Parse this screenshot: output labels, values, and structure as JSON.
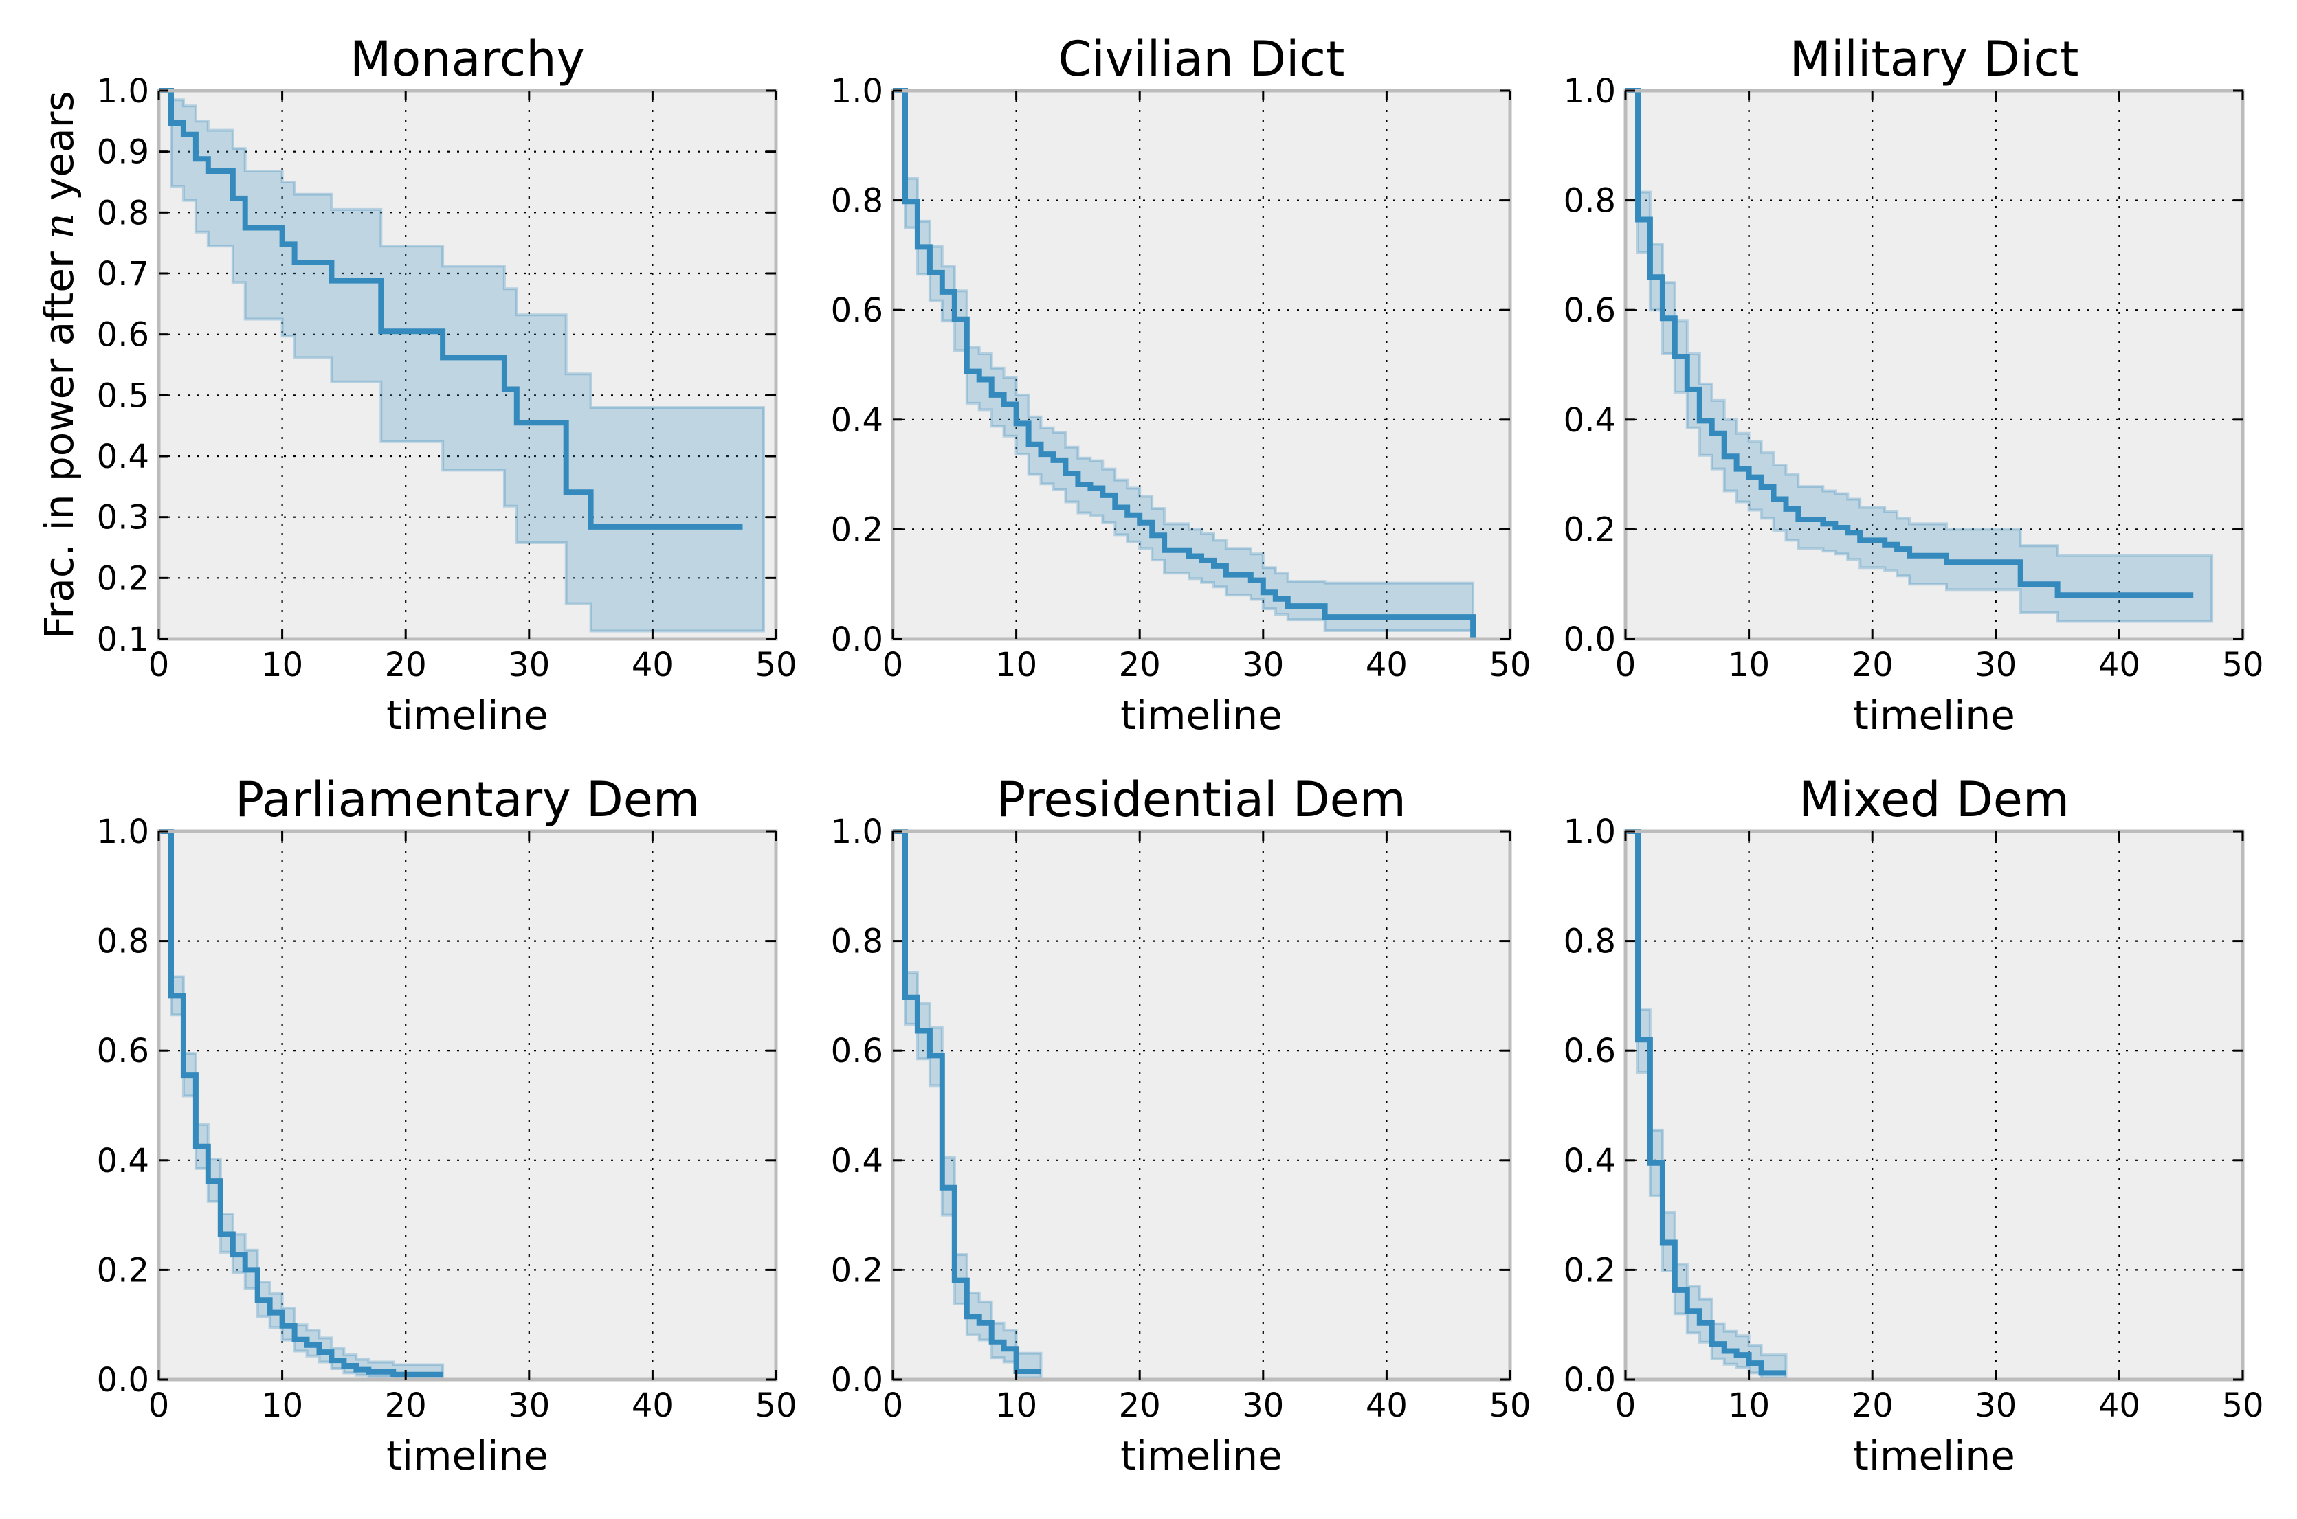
{
  "figure": {
    "ylabel_parts": [
      "Frac. in power after ",
      "n",
      " years"
    ]
  },
  "chart_data": [
    {
      "type": "line",
      "title": "Monarchy",
      "xlabel": "timeline",
      "ylabel": "Frac. in power after n years",
      "xlim": [
        0,
        50
      ],
      "ylim": [
        0.1,
        1.0
      ],
      "xticks": [
        0,
        10,
        20,
        30,
        40,
        50
      ],
      "yticks": [
        0.1,
        0.2,
        0.3,
        0.4,
        0.5,
        0.6,
        0.7,
        0.8,
        0.9,
        1.0
      ],
      "ytick_labels": [
        "0.1",
        "0.2",
        "0.3",
        "0.4",
        "0.5",
        "0.6",
        "0.7",
        "0.8",
        "0.9",
        "1.0"
      ],
      "grid": true,
      "step_times": [
        0,
        1,
        2,
        3,
        4,
        6,
        7,
        10,
        11,
        14,
        18,
        23,
        28,
        29,
        33,
        35
      ],
      "survival": [
        1.0,
        0.947,
        0.928,
        0.888,
        0.868,
        0.823,
        0.775,
        0.748,
        0.718,
        0.688,
        0.605,
        0.562,
        0.51,
        0.455,
        0.341,
        0.284
      ],
      "ci_lower": [
        1.0,
        0.843,
        0.82,
        0.768,
        0.745,
        0.685,
        0.625,
        0.597,
        0.562,
        0.522,
        0.424,
        0.377,
        0.318,
        0.258,
        0.158,
        0.113
      ],
      "ci_upper": [
        1.0,
        0.985,
        0.975,
        0.95,
        0.935,
        0.905,
        0.868,
        0.85,
        0.83,
        0.805,
        0.745,
        0.712,
        0.675,
        0.632,
        0.535,
        0.48
      ],
      "line_end": 47.3,
      "ci_end": 49
    },
    {
      "type": "line",
      "title": "Civilian Dict",
      "xlabel": "timeline",
      "xlim": [
        0,
        50
      ],
      "ylim": [
        0.0,
        1.0
      ],
      "xticks": [
        0,
        10,
        20,
        30,
        40,
        50
      ],
      "yticks": [
        0.0,
        0.2,
        0.4,
        0.6,
        0.8,
        1.0
      ],
      "ytick_labels": [
        "0.0",
        "0.2",
        "0.4",
        "0.6",
        "0.8",
        "1.0"
      ],
      "grid": true,
      "step_times": [
        0,
        1,
        2,
        3,
        4,
        5,
        6,
        7,
        8,
        9,
        10,
        11,
        12,
        13,
        14,
        15,
        16,
        17,
        18,
        19,
        20,
        21,
        22,
        24,
        25,
        26,
        27,
        29,
        30,
        31,
        32,
        35,
        47
      ],
      "survival": [
        1.0,
        0.798,
        0.715,
        0.668,
        0.633,
        0.583,
        0.488,
        0.473,
        0.445,
        0.428,
        0.393,
        0.355,
        0.337,
        0.326,
        0.302,
        0.282,
        0.275,
        0.262,
        0.24,
        0.226,
        0.212,
        0.189,
        0.162,
        0.151,
        0.143,
        0.133,
        0.117,
        0.107,
        0.085,
        0.073,
        0.06,
        0.04,
        0.0
      ],
      "ci_lower": [
        1.0,
        0.75,
        0.665,
        0.617,
        0.58,
        0.526,
        0.43,
        0.418,
        0.388,
        0.37,
        0.337,
        0.3,
        0.283,
        0.272,
        0.25,
        0.23,
        0.225,
        0.212,
        0.19,
        0.177,
        0.165,
        0.144,
        0.12,
        0.11,
        0.103,
        0.095,
        0.08,
        0.072,
        0.055,
        0.045,
        0.035,
        0.015,
        0.015
      ],
      "ci_upper": [
        1.0,
        0.84,
        0.762,
        0.716,
        0.68,
        0.635,
        0.532,
        0.52,
        0.494,
        0.477,
        0.445,
        0.405,
        0.385,
        0.377,
        0.35,
        0.33,
        0.325,
        0.31,
        0.29,
        0.275,
        0.26,
        0.238,
        0.21,
        0.2,
        0.192,
        0.18,
        0.165,
        0.155,
        0.13,
        0.12,
        0.105,
        0.102,
        0.102
      ],
      "line_end": 47,
      "ci_end": 47
    },
    {
      "type": "line",
      "title": "Military Dict",
      "xlabel": "timeline",
      "xlim": [
        0,
        50
      ],
      "ylim": [
        0.0,
        1.0
      ],
      "xticks": [
        0,
        10,
        20,
        30,
        40,
        50
      ],
      "yticks": [
        0.0,
        0.2,
        0.4,
        0.6,
        0.8,
        1.0
      ],
      "ytick_labels": [
        "0.0",
        "0.2",
        "0.4",
        "0.6",
        "0.8",
        "1.0"
      ],
      "grid": true,
      "step_times": [
        0,
        1,
        2,
        3,
        4,
        5,
        6,
        7,
        8,
        9,
        10,
        11,
        12,
        13,
        14,
        16,
        17,
        18,
        19,
        21,
        22,
        23,
        26,
        32,
        35
      ],
      "survival": [
        1.0,
        0.765,
        0.66,
        0.585,
        0.515,
        0.455,
        0.398,
        0.375,
        0.333,
        0.31,
        0.295,
        0.277,
        0.255,
        0.237,
        0.218,
        0.21,
        0.203,
        0.194,
        0.18,
        0.172,
        0.164,
        0.152,
        0.14,
        0.1,
        0.08
      ],
      "ci_lower": [
        1.0,
        0.705,
        0.6,
        0.52,
        0.45,
        0.385,
        0.335,
        0.31,
        0.27,
        0.25,
        0.235,
        0.22,
        0.198,
        0.18,
        0.165,
        0.16,
        0.155,
        0.145,
        0.13,
        0.125,
        0.115,
        0.1,
        0.09,
        0.048,
        0.032
      ],
      "ci_upper": [
        1.0,
        0.815,
        0.72,
        0.65,
        0.58,
        0.52,
        0.465,
        0.435,
        0.4,
        0.375,
        0.36,
        0.34,
        0.317,
        0.3,
        0.278,
        0.27,
        0.265,
        0.255,
        0.24,
        0.232,
        0.22,
        0.21,
        0.2,
        0.17,
        0.152
      ],
      "line_end": 46,
      "ci_end": 47.5
    },
    {
      "type": "line",
      "title": "Parliamentary Dem",
      "xlabel": "timeline",
      "xlim": [
        0,
        50
      ],
      "ylim": [
        0.0,
        1.0
      ],
      "xticks": [
        0,
        10,
        20,
        30,
        40,
        50
      ],
      "yticks": [
        0.0,
        0.2,
        0.4,
        0.6,
        0.8,
        1.0
      ],
      "ytick_labels": [
        "0.0",
        "0.2",
        "0.4",
        "0.6",
        "0.8",
        "1.0"
      ],
      "grid": true,
      "step_times": [
        0,
        1,
        2,
        3,
        4,
        5,
        6,
        7,
        8,
        9,
        10,
        11,
        12,
        13,
        14,
        15,
        16,
        17,
        19
      ],
      "survival": [
        1.0,
        0.7,
        0.555,
        0.425,
        0.362,
        0.265,
        0.228,
        0.2,
        0.145,
        0.122,
        0.098,
        0.073,
        0.063,
        0.05,
        0.035,
        0.025,
        0.018,
        0.014,
        0.009
      ],
      "ci_lower": [
        1.0,
        0.665,
        0.517,
        0.385,
        0.325,
        0.232,
        0.195,
        0.166,
        0.115,
        0.095,
        0.072,
        0.052,
        0.043,
        0.032,
        0.02,
        0.012,
        0.008,
        0.005,
        0.002
      ],
      "ci_upper": [
        1.0,
        0.735,
        0.595,
        0.465,
        0.402,
        0.302,
        0.265,
        0.236,
        0.178,
        0.157,
        0.13,
        0.1,
        0.09,
        0.076,
        0.057,
        0.045,
        0.037,
        0.032,
        0.027
      ],
      "line_end": 23,
      "ci_end": 23
    },
    {
      "type": "line",
      "title": "Presidential Dem",
      "xlabel": "timeline",
      "xlim": [
        0,
        50
      ],
      "ylim": [
        0.0,
        1.0
      ],
      "xticks": [
        0,
        10,
        20,
        30,
        40,
        50
      ],
      "yticks": [
        0.0,
        0.2,
        0.4,
        0.6,
        0.8,
        1.0
      ],
      "ytick_labels": [
        "0.0",
        "0.2",
        "0.4",
        "0.6",
        "0.8",
        "1.0"
      ],
      "grid": true,
      "step_times": [
        0,
        1,
        2,
        3,
        4,
        5,
        6,
        7,
        8,
        9,
        10
      ],
      "survival": [
        1.0,
        0.697,
        0.636,
        0.591,
        0.35,
        0.181,
        0.115,
        0.103,
        0.068,
        0.056,
        0.015
      ],
      "ci_lower": [
        1.0,
        0.648,
        0.585,
        0.536,
        0.3,
        0.138,
        0.082,
        0.072,
        0.04,
        0.032,
        0.003
      ],
      "ci_upper": [
        1.0,
        0.742,
        0.686,
        0.642,
        0.405,
        0.228,
        0.158,
        0.142,
        0.103,
        0.09,
        0.048
      ],
      "line_end": 12,
      "ci_end": 12
    },
    {
      "type": "line",
      "title": "Mixed Dem",
      "xlabel": "timeline",
      "xlim": [
        0,
        50
      ],
      "ylim": [
        0.0,
        1.0
      ],
      "xticks": [
        0,
        10,
        20,
        30,
        40,
        50
      ],
      "yticks": [
        0.0,
        0.2,
        0.4,
        0.6,
        0.8,
        1.0
      ],
      "ytick_labels": [
        "0.0",
        "0.2",
        "0.4",
        "0.6",
        "0.8",
        "1.0"
      ],
      "grid": true,
      "step_times": [
        0,
        1,
        2,
        3,
        4,
        5,
        6,
        7,
        8,
        9,
        10,
        11
      ],
      "survival": [
        1.0,
        0.62,
        0.395,
        0.25,
        0.163,
        0.125,
        0.103,
        0.065,
        0.052,
        0.045,
        0.03,
        0.012
      ],
      "ci_lower": [
        1.0,
        0.56,
        0.335,
        0.198,
        0.12,
        0.085,
        0.068,
        0.038,
        0.028,
        0.022,
        0.012,
        0.002
      ],
      "ci_upper": [
        1.0,
        0.675,
        0.455,
        0.305,
        0.21,
        0.17,
        0.147,
        0.102,
        0.088,
        0.08,
        0.062,
        0.045
      ],
      "line_end": 13,
      "ci_end": 13
    }
  ],
  "colors": {
    "line": "#348abd",
    "band_fill": "#348abd",
    "band_edge": "#348abd",
    "axes_bg": "#eeeeee",
    "axes_frame": "#bcbcbc",
    "grid": "#000000"
  }
}
